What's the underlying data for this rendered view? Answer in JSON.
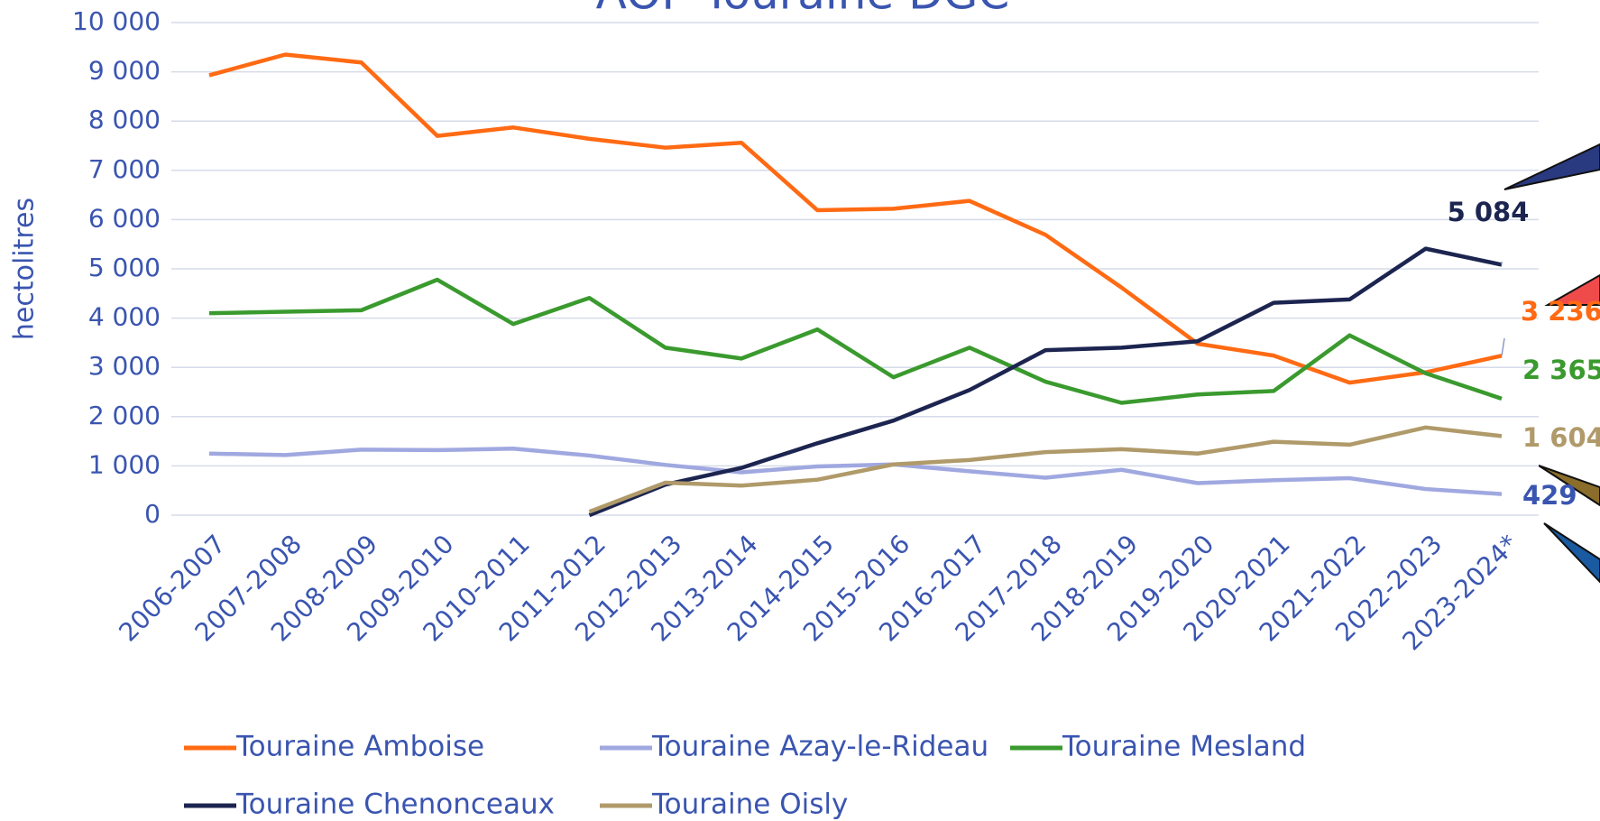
{
  "chart_data": {
    "type": "line",
    "title": "AOP Touraine DGC",
    "y_label": "hectolitres",
    "categories": [
      "2006-2007",
      "2007-2008",
      "2008-2009",
      "2009-2010",
      "2010-2011",
      "2011-2012",
      "2012-2013",
      "2013-2014",
      "2014-2015",
      "2015-2016",
      "2016-2017",
      "2017-2018",
      "2018-2019",
      "2019-2020",
      "2020-2021",
      "2021-2022",
      "2022-2023",
      "2023-2024*"
    ],
    "ylim": [
      0,
      10000
    ],
    "yticks": [
      0,
      {
        "value": 1000,
        "label": "1 000"
      },
      {
        "value": 2000,
        "label": "2 000"
      },
      {
        "value": 3000,
        "label": "3 000"
      },
      {
        "value": 4000,
        "label": "4 000"
      },
      {
        "value": 5000,
        "label": "5 000"
      },
      {
        "value": 6000,
        "label": "6 000"
      },
      {
        "value": 7000,
        "label": "7 000"
      },
      {
        "value": 8000,
        "label": "8 000"
      },
      {
        "value": 9000,
        "label": "9 000"
      },
      {
        "value": 10000,
        "label": "10 000"
      }
    ],
    "grid": true,
    "legend": "bottom",
    "series": [
      {
        "name": "Touraine Amboise",
        "color": "#ff6a13",
        "values": [
          8930,
          9350,
          9190,
          7700,
          7870,
          7640,
          7460,
          7560,
          6190,
          6220,
          6380,
          5690,
          4620,
          3480,
          3240,
          2690,
          2900,
          3236
        ],
        "value_labels": [
          null,
          null,
          null,
          null,
          null,
          null,
          null,
          null,
          null,
          null,
          null,
          null,
          null,
          null,
          null,
          null,
          null,
          "3 236"
        ]
      },
      {
        "name": "Touraine Azay-le-Rideau",
        "color": "#a0a8e0",
        "values": [
          1250,
          1220,
          1330,
          1320,
          1350,
          1210,
          1020,
          870,
          990,
          1030,
          890,
          760,
          920,
          650,
          710,
          750,
          530,
          429
        ],
        "value_labels": [
          null,
          null,
          null,
          null,
          null,
          null,
          null,
          null,
          null,
          null,
          null,
          null,
          null,
          null,
          null,
          null,
          null,
          "429"
        ]
      },
      {
        "name": "Touraine Mesland",
        "color": "#3a9a2e",
        "values": [
          4100,
          4130,
          4160,
          4780,
          3880,
          4410,
          3400,
          3180,
          3770,
          2800,
          3400,
          2710,
          2280,
          2450,
          2520,
          3650,
          2880,
          2365
        ],
        "value_labels": [
          null,
          null,
          null,
          null,
          null,
          null,
          null,
          null,
          null,
          null,
          null,
          null,
          null,
          null,
          null,
          null,
          null,
          "2 365"
        ]
      },
      {
        "name": "Touraine Chenonceaux",
        "color": "#1c2550",
        "values": [
          null,
          null,
          null,
          null,
          null,
          0,
          620,
          960,
          1460,
          1920,
          2540,
          3350,
          3400,
          3530,
          4310,
          4380,
          5410,
          5084
        ],
        "value_labels": [
          null,
          null,
          null,
          null,
          null,
          null,
          null,
          null,
          null,
          null,
          null,
          null,
          null,
          null,
          null,
          null,
          null,
          "5 084"
        ]
      },
      {
        "name": "Touraine Oisly",
        "color": "#b09a6a",
        "values": [
          null,
          null,
          null,
          null,
          null,
          70,
          660,
          600,
          720,
          1030,
          1120,
          1280,
          1340,
          1250,
          1490,
          1430,
          1780,
          1604
        ],
        "value_labels": [
          null,
          null,
          null,
          null,
          null,
          null,
          null,
          null,
          null,
          null,
          null,
          null,
          null,
          null,
          null,
          null,
          null,
          "1 604"
        ]
      }
    ]
  }
}
